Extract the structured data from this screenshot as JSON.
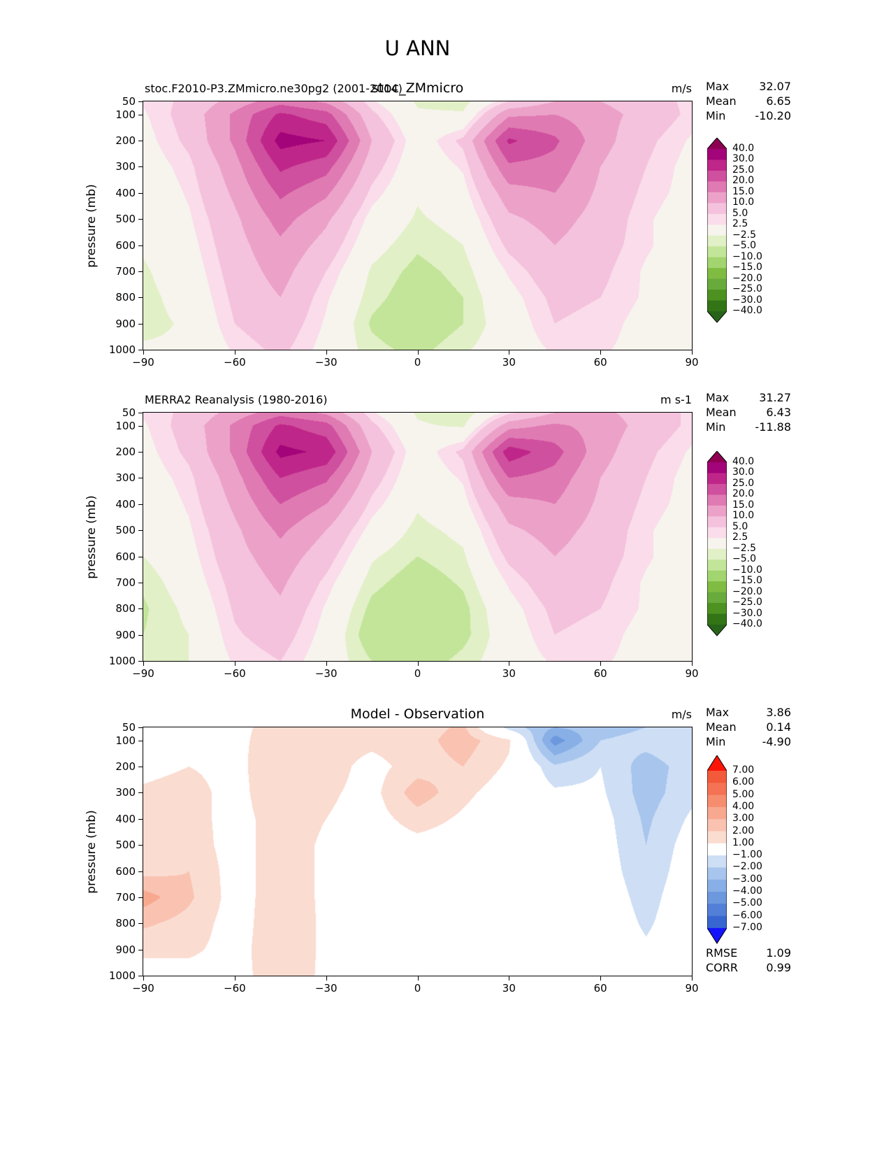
{
  "main_title": "U ANN",
  "ylabel": "pressure (mb)",
  "xtick_labels": [
    "−90",
    "−60",
    "−30",
    "0",
    "30",
    "60",
    "90"
  ],
  "xtick_values": [
    -90,
    -60,
    -30,
    0,
    30,
    60,
    90
  ],
  "ytick_labels": [
    "50",
    "100",
    "200",
    "300",
    "400",
    "500",
    "600",
    "700",
    "800",
    "900",
    "1000"
  ],
  "ytick_values": [
    50,
    100,
    200,
    300,
    400,
    500,
    600,
    700,
    800,
    900,
    1000
  ],
  "panels": [
    {
      "title_left": "stoc.F2010-P3.ZMmicro.ne30pg2 (2001-2014)",
      "title_center": "stoc_ZMmicro",
      "units": "m/s",
      "stats": [
        {
          "label": "Max",
          "value": "32.07"
        },
        {
          "label": "Mean",
          "value": "6.65"
        },
        {
          "label": "Min",
          "value": "-10.20"
        }
      ]
    },
    {
      "title_left": "MERRA2 Reanalysis (1980-2016)",
      "title_center": "",
      "units": "m s-1",
      "stats": [
        {
          "label": "Max",
          "value": "31.27"
        },
        {
          "label": "Mean",
          "value": "6.43"
        },
        {
          "label": "Min",
          "value": "-11.88"
        }
      ]
    },
    {
      "title_left": "",
      "title_center": "Model - Observation",
      "units": "m/s",
      "stats": [
        {
          "label": "Max",
          "value": "3.86"
        },
        {
          "label": "Mean",
          "value": "0.14"
        },
        {
          "label": "Min",
          "value": "-4.90"
        }
      ],
      "extra": [
        {
          "label": "RMSE",
          "value": "1.09"
        },
        {
          "label": "CORR",
          "value": "0.99"
        }
      ]
    }
  ],
  "colorbars": {
    "wind": {
      "levels": [
        -40,
        -30,
        -25,
        -20,
        -15,
        -10,
        -5,
        -2.5,
        2.5,
        5,
        10,
        15,
        20,
        25,
        30,
        40
      ],
      "labels": [
        "40.0",
        "30.0",
        "25.0",
        "20.0",
        "15.0",
        "10.0",
        "5.0",
        "2.5",
        "−2.5",
        "−5.0",
        "−10.0",
        "−15.0",
        "−20.0",
        "−25.0",
        "−30.0",
        "−40.0"
      ],
      "bin_colors": [
        "#276419",
        "#337417",
        "#4d9221",
        "#69aa3d",
        "#7fbc41",
        "#a2d56f",
        "#c3e59a",
        "#e1f0c6",
        "#f7f4ee",
        "#fadcea",
        "#f4c2dc",
        "#eca2c8",
        "#e07ab3",
        "#cf509e",
        "#bf2689",
        "#a30479",
        "#8e0152"
      ]
    },
    "diff": {
      "levels": [
        -7,
        -6,
        -5,
        -4,
        -3,
        -2,
        -1,
        1,
        2,
        3,
        4,
        5,
        6,
        7
      ],
      "labels": [
        "7.00",
        "6.00",
        "5.00",
        "4.00",
        "3.00",
        "2.00",
        "1.00",
        "−1.00",
        "−2.00",
        "−3.00",
        "−4.00",
        "−5.00",
        "−6.00",
        "−7.00"
      ],
      "bin_colors": [
        "#1414fb",
        "#3866d1",
        "#527fd7",
        "#6c98de",
        "#88afe6",
        "#a7c5ed",
        "#cddef5",
        "#ffffff",
        "#fbdcd1",
        "#f9c2b1",
        "#f8a88f",
        "#f68d6f",
        "#f47354",
        "#f25a3b",
        "#fb1507"
      ]
    }
  },
  "chart_data": [
    {
      "type": "heatmap",
      "title": "stoc.F2010-P3.ZMmicro.ne30pg2 (2001-2014)",
      "subtitle": "stoc_ZMmicro",
      "units": "m/s",
      "ylabel": "pressure (mb)",
      "xlim": [
        -90,
        90
      ],
      "ylim": [
        1000,
        50
      ],
      "levels": [
        -40,
        -30,
        -25,
        -20,
        -15,
        -10,
        -5,
        -2.5,
        2.5,
        5,
        10,
        15,
        20,
        25,
        30,
        40
      ],
      "stats": {
        "max": 32.07,
        "mean": 6.65,
        "min": -10.2
      },
      "lat": [
        -90,
        -75,
        -60,
        -45,
        -30,
        -15,
        0,
        15,
        30,
        45,
        60,
        75,
        90
      ],
      "pressure_mb": [
        50,
        100,
        200,
        300,
        400,
        500,
        600,
        700,
        800,
        900,
        1000
      ],
      "values": [
        [
          3.0,
          6.0,
          12.0,
          18.0,
          14.0,
          3.0,
          -3.0,
          -4.0,
          5.0,
          10.0,
          10.0,
          7.0,
          4.0
        ],
        [
          2.0,
          7.0,
          16.0,
          26.0,
          22.0,
          6.0,
          -2.0,
          -2.0,
          14.0,
          15.0,
          12.0,
          8.0,
          4.0
        ],
        [
          1.0,
          6.0,
          16.0,
          32.0,
          30.0,
          10.0,
          0.0,
          6.0,
          26.0,
          21.0,
          12.0,
          6.0,
          2.0
        ],
        [
          0.0,
          4.0,
          13.0,
          26.0,
          22.0,
          7.0,
          -1.0,
          3.0,
          19.0,
          18.0,
          10.0,
          5.0,
          1.0
        ],
        [
          -1.0,
          3.0,
          11.0,
          21.0,
          16.0,
          4.0,
          -2.0,
          1.0,
          13.0,
          15.0,
          9.0,
          4.0,
          1.0
        ],
        [
          -1.5,
          2.0,
          9.0,
          17.0,
          11.0,
          1.0,
          -3.0,
          -1.0,
          9.0,
          12.0,
          8.0,
          3.0,
          0.0
        ],
        [
          -2.0,
          1.0,
          8.0,
          14.0,
          8.0,
          -1.0,
          -4.5,
          -2.5,
          6.0,
          10.0,
          7.0,
          3.0,
          0.0
        ],
        [
          -3.0,
          0.0,
          7.0,
          12.0,
          5.0,
          -3.0,
          -6.0,
          -4.0,
          3.0,
          8.0,
          6.0,
          2.0,
          0.0
        ],
        [
          -3.5,
          -1.0,
          6.0,
          10.0,
          3.0,
          -4.0,
          -7.0,
          -5.0,
          1.0,
          6.0,
          5.0,
          2.0,
          0.0
        ],
        [
          -3.5,
          -2.0,
          5.0,
          8.0,
          2.0,
          -5.5,
          -8.0,
          -5.0,
          0.0,
          5.0,
          4.0,
          1.0,
          0.0
        ],
        [
          -2.0,
          -2.0,
          3.0,
          6.0,
          1.0,
          -4.0,
          -6.0,
          -3.0,
          0.0,
          3.0,
          3.0,
          1.0,
          0.0
        ]
      ]
    },
    {
      "type": "heatmap",
      "title": "MERRA2 Reanalysis (1980-2016)",
      "units": "m s-1",
      "ylabel": "pressure (mb)",
      "xlim": [
        -90,
        90
      ],
      "ylim": [
        1000,
        50
      ],
      "levels": [
        -40,
        -30,
        -25,
        -20,
        -15,
        -10,
        -5,
        -2.5,
        2.5,
        5,
        10,
        15,
        20,
        25,
        30,
        40
      ],
      "stats": {
        "max": 31.27,
        "mean": 6.43,
        "min": -11.88
      },
      "lat": [
        -90,
        -75,
        -60,
        -45,
        -30,
        -15,
        0,
        15,
        30,
        45,
        60,
        75,
        90
      ],
      "pressure_mb": [
        50,
        100,
        200,
        300,
        400,
        500,
        600,
        700,
        800,
        900,
        1000
      ],
      "values": [
        [
          3.0,
          6.0,
          12.0,
          18.0,
          14.0,
          3.0,
          -3.0,
          -5.0,
          4.0,
          10.0,
          11.0,
          8.0,
          4.0
        ],
        [
          2.0,
          7.0,
          16.0,
          26.0,
          22.0,
          6.0,
          -2.0,
          -3.0,
          13.0,
          16.0,
          13.0,
          8.0,
          4.0
        ],
        [
          1.0,
          6.0,
          16.0,
          31.5,
          29.0,
          10.0,
          0.0,
          6.0,
          28.0,
          22.0,
          12.0,
          6.0,
          2.0
        ],
        [
          0.0,
          4.0,
          13.0,
          25.0,
          21.0,
          7.0,
          -1.0,
          3.0,
          20.0,
          18.0,
          10.0,
          5.0,
          1.0
        ],
        [
          -1.0,
          3.0,
          11.0,
          20.0,
          15.0,
          4.0,
          -2.0,
          1.0,
          13.0,
          15.0,
          9.0,
          4.0,
          1.0
        ],
        [
          -1.5,
          2.0,
          9.0,
          16.0,
          10.0,
          1.0,
          -3.5,
          -1.5,
          9.0,
          12.0,
          8.0,
          3.0,
          0.0
        ],
        [
          -2.5,
          1.0,
          8.0,
          13.0,
          7.0,
          -2.0,
          -5.0,
          -3.0,
          6.0,
          10.0,
          7.0,
          3.0,
          0.0
        ],
        [
          -4.5,
          0.0,
          6.5,
          11.0,
          4.0,
          -4.0,
          -7.0,
          -4.5,
          3.0,
          8.0,
          6.0,
          2.0,
          0.0
        ],
        [
          -5.5,
          -1.5,
          5.5,
          9.0,
          2.0,
          -6.0,
          -8.5,
          -6.0,
          1.0,
          6.0,
          5.0,
          2.0,
          0.0
        ],
        [
          -5.0,
          -2.5,
          4.5,
          7.0,
          1.0,
          -7.5,
          -9.5,
          -6.0,
          0.0,
          5.0,
          4.0,
          1.0,
          0.0
        ],
        [
          -2.5,
          -2.5,
          3.0,
          5.0,
          0.0,
          -5.0,
          -7.0,
          -4.0,
          0.0,
          3.0,
          3.0,
          1.0,
          0.0
        ]
      ]
    },
    {
      "type": "heatmap",
      "title": "Model - Observation",
      "units": "m/s",
      "ylabel": "pressure (mb)",
      "xlim": [
        -90,
        90
      ],
      "ylim": [
        1000,
        50
      ],
      "levels": [
        -7,
        -6,
        -5,
        -4,
        -3,
        -2,
        -1,
        1,
        2,
        3,
        4,
        5,
        6,
        7
      ],
      "stats": {
        "max": 3.86,
        "mean": 0.14,
        "min": -4.9,
        "rmse": 1.09,
        "corr": 0.99
      },
      "lat": [
        -90,
        -75,
        -60,
        -45,
        -30,
        -15,
        0,
        15,
        30,
        45,
        60,
        75,
        90
      ],
      "pressure_mb": [
        50,
        100,
        200,
        300,
        400,
        500,
        600,
        700,
        800,
        900,
        1000
      ],
      "values": [
        [
          0.3,
          0.4,
          0.8,
          1.3,
          1.2,
          1.3,
          1.5,
          2.2,
          -1.5,
          -3.0,
          -2.5,
          -2.0,
          -1.5
        ],
        [
          0.3,
          0.5,
          0.8,
          1.4,
          1.5,
          1.3,
          1.6,
          2.5,
          1.2,
          -4.6,
          -2.0,
          -1.6,
          -1.2
        ],
        [
          0.6,
          1.0,
          0.6,
          2.0,
          1.5,
          0.6,
          1.5,
          2.0,
          0.8,
          -1.8,
          -1.0,
          -2.5,
          -1.5
        ],
        [
          1.2,
          1.5,
          0.5,
          2.0,
          1.2,
          0.6,
          2.6,
          1.3,
          0.3,
          -0.8,
          -0.8,
          -2.5,
          -1.3
        ],
        [
          1.2,
          1.5,
          0.5,
          1.6,
          1.0,
          0.5,
          1.5,
          0.8,
          0.0,
          -0.3,
          -0.5,
          -2.2,
          -0.8
        ],
        [
          1.3,
          1.6,
          0.5,
          1.6,
          0.8,
          0.3,
          0.6,
          0.4,
          0.0,
          0.0,
          -0.4,
          -2.0,
          -0.4
        ],
        [
          1.6,
          2.0,
          0.5,
          1.6,
          0.8,
          0.3,
          0.5,
          0.2,
          0.0,
          0.0,
          -0.3,
          -1.8,
          -0.2
        ],
        [
          3.5,
          2.2,
          0.5,
          1.6,
          0.8,
          0.3,
          0.5,
          0.0,
          0.0,
          0.0,
          -0.1,
          -1.5,
          0.0
        ],
        [
          2.2,
          1.6,
          0.5,
          1.7,
          0.8,
          0.2,
          0.3,
          0.0,
          0.0,
          0.0,
          0.0,
          -1.2,
          0.0
        ],
        [
          1.2,
          1.2,
          0.6,
          1.7,
          0.8,
          0.2,
          0.2,
          0.0,
          0.0,
          0.0,
          0.0,
          -0.8,
          0.0
        ],
        [
          0.6,
          0.6,
          0.6,
          1.6,
          0.8,
          0.2,
          0.0,
          0.0,
          0.0,
          0.0,
          0.0,
          -0.3,
          0.0
        ]
      ]
    }
  ]
}
